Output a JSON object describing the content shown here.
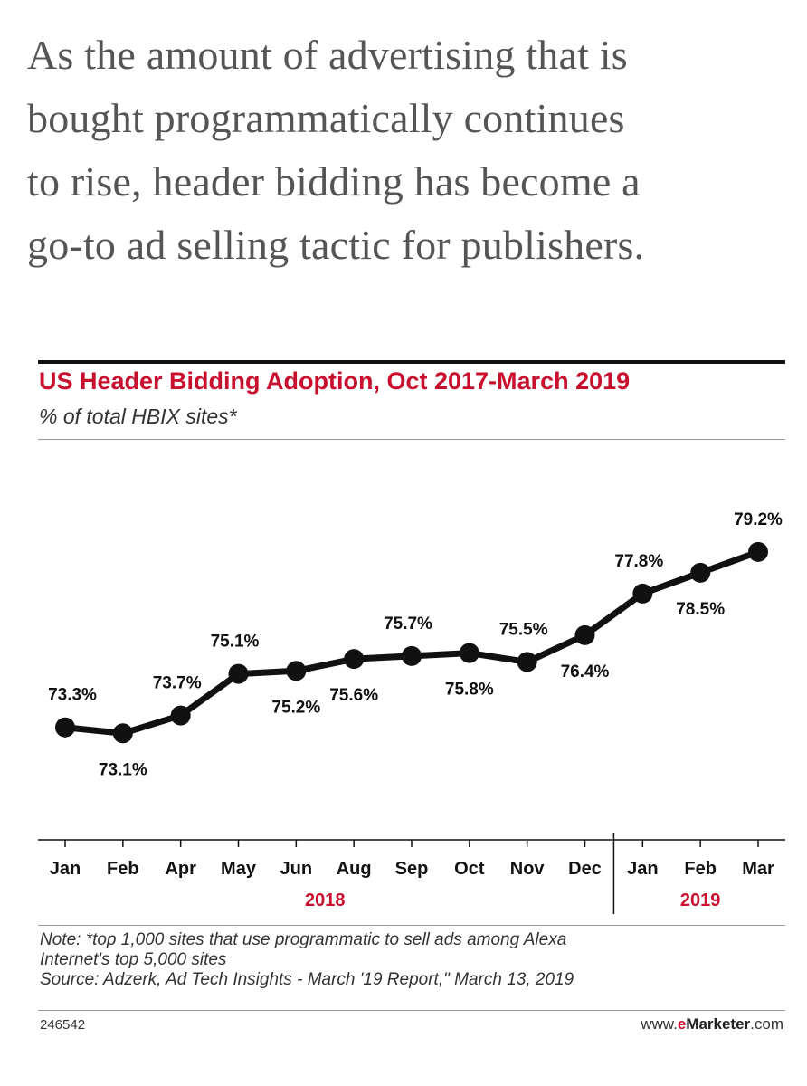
{
  "article": {
    "lines": [
      "As the amount of advertising that is",
      "bought programmatically continues",
      "to rise, header bidding has become a",
      "go-to ad selling tactic for publishers."
    ]
  },
  "chart_data": {
    "type": "line",
    "title": "US Header Bidding Adoption, Oct 2017-March 2019",
    "subtitle": "% of total HBIX sites*",
    "categories": [
      "Jan",
      "Feb",
      "Apr",
      "May",
      "Jun",
      "Aug",
      "Sep",
      "Oct",
      "Nov",
      "Dec",
      "Jan",
      "Feb",
      "Mar"
    ],
    "values": [
      73.3,
      73.1,
      73.7,
      75.1,
      75.2,
      75.6,
      75.7,
      75.8,
      75.5,
      76.4,
      77.8,
      78.5,
      79.2
    ],
    "value_labels": [
      "73.3%",
      "73.1%",
      "73.7%",
      "75.1%",
      "75.2%",
      "75.6%",
      "75.7%",
      "75.8%",
      "75.5%",
      "76.4%",
      "77.8%",
      "78.5%",
      "79.2%"
    ],
    "label_positions": [
      "above",
      "below",
      "above",
      "above",
      "below",
      "below",
      "above",
      "below",
      "above",
      "below",
      "above",
      "below",
      "above"
    ],
    "year_groups": [
      {
        "label": "2018",
        "count": 10
      },
      {
        "label": "2019",
        "count": 3
      }
    ],
    "ylim": [
      72.5,
      79.5
    ],
    "grid": false,
    "series_color": "#111111",
    "accent_color": "#c8102e"
  },
  "footer": {
    "note_lines": [
      "Note: *top 1,000 sites that use programmatic to sell ads among Alexa",
      "Internet's top 5,000 sites",
      "Source: Adzerk, Ad Tech Insights - March '19 Report,\" March 13, 2019"
    ],
    "chart_id": "246542",
    "brand_prefix": "www.",
    "brand_e": "e",
    "brand_main": "Marketer",
    "brand_suffix": ".com"
  }
}
